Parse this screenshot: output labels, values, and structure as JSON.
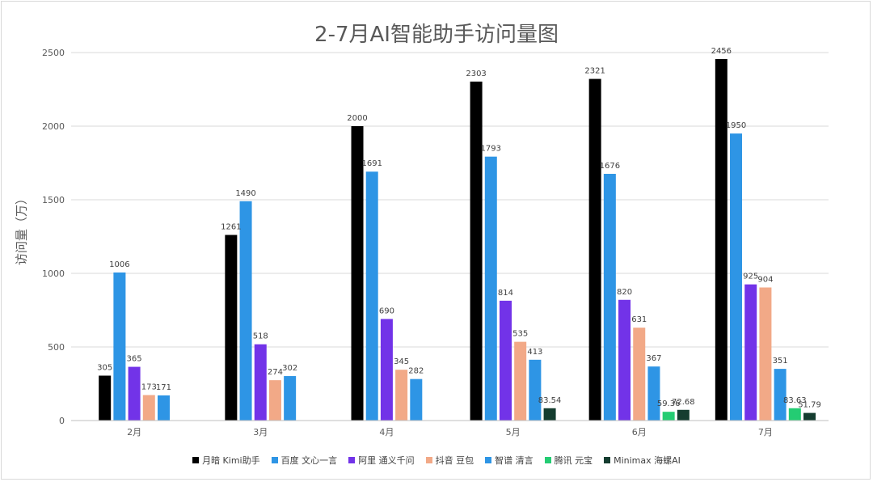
{
  "chart_data": {
    "type": "bar",
    "title": "2-7月AI智能助手访问量图",
    "xlabel": "",
    "ylabel": "访问量（万）",
    "ylim": [
      0,
      2500
    ],
    "yticks": [
      0,
      500,
      1000,
      1500,
      2000,
      2500
    ],
    "grid": true,
    "legend_position": "bottom",
    "categories": [
      "2月",
      "3月",
      "4月",
      "5月",
      "6月",
      "7月"
    ],
    "series": [
      {
        "name": "月暗 Kimi助手",
        "color": "#000000",
        "values": [
          305,
          1261,
          2000,
          2303,
          2321,
          2456
        ]
      },
      {
        "name": "百度 文心一言",
        "color": "#2e95e5",
        "values": [
          1006,
          1490,
          1691,
          1793,
          1676,
          1950
        ]
      },
      {
        "name": "阿里 通义千问",
        "color": "#7233e8",
        "values": [
          365,
          518,
          690,
          814,
          820,
          925
        ]
      },
      {
        "name": "抖音 豆包",
        "color": "#f2a987",
        "values": [
          173,
          274,
          345,
          535,
          631,
          904
        ]
      },
      {
        "name": "智谱 清言",
        "color": "#2e95e5",
        "values": [
          171,
          302,
          282,
          413,
          367,
          351
        ]
      },
      {
        "name": "腾讯 元宝",
        "color": "#24cc73",
        "values": [
          null,
          null,
          null,
          null,
          59.36,
          83.63
        ]
      },
      {
        "name": "Minimax 海螺AI",
        "color": "#153d30",
        "values": [
          null,
          null,
          null,
          83.54,
          72.68,
          51.79
        ]
      }
    ]
  }
}
